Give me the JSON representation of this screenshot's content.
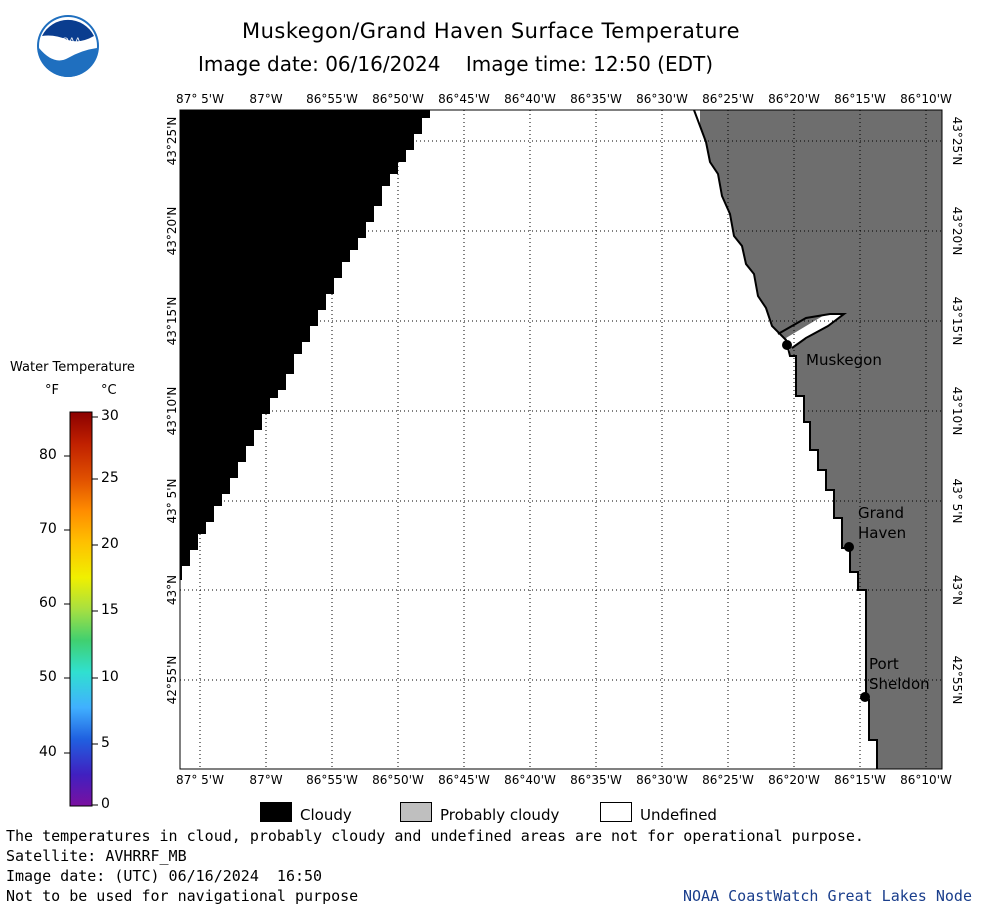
{
  "header": {
    "title": "Muskegon/Grand Haven Surface Temperature",
    "image_date_label": "Image date: 06/16/2024",
    "image_time_label": "Image time: 12:50 (EDT)"
  },
  "logo": {
    "text": "NOAA"
  },
  "map": {
    "lon_labels": [
      "87° 5'W",
      "87°W",
      "86°55'W",
      "86°50'W",
      "86°45'W",
      "86°40'W",
      "86°35'W",
      "86°30'W",
      "86°25'W",
      "86°20'W",
      "86°15'W",
      "86°10'W"
    ],
    "lat_labels": [
      "43°25'N",
      "43°20'N",
      "43°15'N",
      "43°10'N",
      "43° 5'N",
      "43°N",
      "42°55'N"
    ],
    "cities": [
      {
        "name": "Muskegon"
      },
      {
        "name": "Grand\nHaven"
      },
      {
        "name": "Port\nSheldon"
      }
    ],
    "colors": {
      "cloudy": "#000000",
      "probably_cloudy": "#6e6e6e",
      "undefined": "#ffffff",
      "grid": "#000000"
    }
  },
  "legend": {
    "title": "Water Temperature",
    "unit_f": "°F",
    "unit_c": "°C",
    "f_ticks": [
      "80",
      "70",
      "60",
      "50",
      "40"
    ],
    "c_ticks": [
      "30",
      "25",
      "20",
      "15",
      "10",
      "5",
      "0"
    ],
    "colorscale": [
      "#8b0000",
      "#c02000",
      "#e05000",
      "#ff8c00",
      "#ffc000",
      "#f0f000",
      "#a8e040",
      "#40d070",
      "#30e0d0",
      "#40b0ff",
      "#2060e0",
      "#4020c0",
      "#7a10a0"
    ]
  },
  "key": {
    "cloudy": "Cloudy",
    "probably_cloudy": "Probably cloudy",
    "undefined": "Undefined"
  },
  "footer": {
    "note": "The temperatures in cloud, probably cloudy and undefined areas are not for operational purpose.",
    "satellite": "Satellite: AVHRRF_MB",
    "utc_date": "Image date: (UTC) 06/16/2024  16:50",
    "nav_warning": "Not to be used for navigational purpose",
    "credit": "NOAA CoastWatch Great Lakes Node"
  }
}
